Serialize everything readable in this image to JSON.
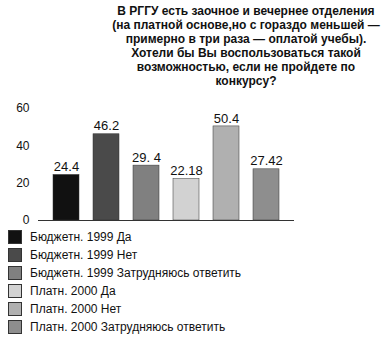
{
  "chart_data": {
    "type": "bar",
    "title": "В РГГУ есть заочное и вечернее отделения (на платной основе,но с гораздо меньшей — примерно в три раза — оплатой учебы). Хотели бы Вы воспользоваться такой возможностью, если не пройдете по конкурсу?",
    "categories": [
      "Бюджетн. 1999 Да",
      "Бюджетн. 1999 Нет",
      "Бюджетн. 1999 Затрудняюсь ответить",
      "Платн. 2000 Да",
      "Платн. 2000 Нет",
      "Платн. 2000 Затрудняюсь ответить"
    ],
    "values": [
      24.4,
      46.2,
      29.4,
      22.18,
      50.4,
      27.42
    ],
    "value_labels": [
      "24.4",
      "46.2",
      "29. 4",
      "22.18",
      "50.4",
      "27.42"
    ],
    "colors": [
      "#111111",
      "#4a4a4a",
      "#808080",
      "#d2d2d2",
      "#b0b0b0",
      "#8e8e8e"
    ],
    "ylim": [
      0,
      60
    ],
    "yticks": [
      0,
      20,
      40,
      60
    ],
    "grid": false,
    "data_labels": true,
    "tick_labels": "y",
    "legend": "bottom"
  }
}
